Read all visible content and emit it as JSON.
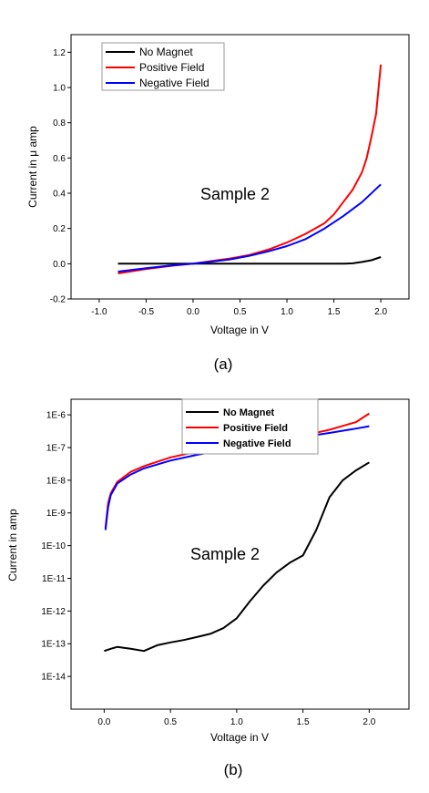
{
  "chart_data": [
    {
      "type": "line",
      "caption": "(a)",
      "xlabel": "Voltage in V",
      "ylabel": "Current in  μ amp",
      "annotation": "Sample 2",
      "xlim": [
        -1.3,
        2.3
      ],
      "ylim": [
        -0.2,
        1.3
      ],
      "xticks": [
        "-1.0",
        "-0.5",
        "0.0",
        "0.5",
        "1.0",
        "1.5",
        "2.0"
      ],
      "yticks": [
        "-0.2",
        "0.0",
        "0.2",
        "0.4",
        "0.6",
        "0.8",
        "1.0",
        "1.2"
      ],
      "legend_position": "top-left",
      "series": [
        {
          "name": "No Magnet",
          "color": "#000000",
          "x": [
            -0.8,
            0.0,
            0.5,
            1.0,
            1.5,
            1.6,
            1.7,
            1.8,
            1.9,
            2.0
          ],
          "y": [
            0.0,
            0.0,
            0.0,
            0.0,
            0.0,
            0.0,
            0.002,
            0.01,
            0.02,
            0.038
          ]
        },
        {
          "name": "Positive Field",
          "color": "#ff0000",
          "x": [
            -0.8,
            -0.5,
            -0.2,
            0.0,
            0.2,
            0.4,
            0.6,
            0.8,
            1.0,
            1.2,
            1.4,
            1.5,
            1.6,
            1.7,
            1.8,
            1.85,
            1.9,
            1.95,
            2.0
          ],
          "y": [
            -0.055,
            -0.03,
            -0.01,
            0.0,
            0.015,
            0.03,
            0.05,
            0.08,
            0.12,
            0.17,
            0.23,
            0.28,
            0.35,
            0.42,
            0.52,
            0.6,
            0.72,
            0.85,
            1.13
          ]
        },
        {
          "name": "Negative Field",
          "color": "#0000ff",
          "x": [
            -0.8,
            -0.5,
            -0.2,
            0.0,
            0.2,
            0.4,
            0.6,
            0.8,
            1.0,
            1.2,
            1.4,
            1.6,
            1.8,
            2.0
          ],
          "y": [
            -0.045,
            -0.025,
            -0.008,
            0.0,
            0.012,
            0.025,
            0.045,
            0.07,
            0.1,
            0.14,
            0.2,
            0.27,
            0.35,
            0.45
          ]
        }
      ]
    },
    {
      "type": "line",
      "caption": "(b)",
      "xlabel": "Voltage in V",
      "ylabel": "Current in amp",
      "annotation": "Sample 2",
      "xscale": "linear",
      "yscale": "log",
      "xlim": [
        -0.25,
        2.3
      ],
      "ylim": [
        1e-15,
        3e-06
      ],
      "xticks": [
        "0.0",
        "0.5",
        "1.0",
        "1.5",
        "2.0"
      ],
      "yticks": [
        "1E-6",
        "1E-7",
        "1E-8",
        "1E-9",
        "1E-10",
        "1E-11",
        "1E-12",
        "1E-13",
        "1E-14"
      ],
      "legend_position": "top",
      "series": [
        {
          "name": "No Magnet",
          "color": "#000000",
          "x": [
            0.0,
            0.05,
            0.1,
            0.2,
            0.3,
            0.4,
            0.5,
            0.6,
            0.7,
            0.8,
            0.9,
            1.0,
            1.1,
            1.2,
            1.3,
            1.4,
            1.5,
            1.6,
            1.7,
            1.8,
            1.9,
            2.0
          ],
          "y": [
            6e-14,
            7e-14,
            8e-14,
            7e-14,
            6e-14,
            9e-14,
            1.1e-13,
            1.3e-13,
            1.6e-13,
            2e-13,
            3e-13,
            6e-13,
            2e-12,
            6e-12,
            1.5e-11,
            3e-11,
            5e-11,
            3e-10,
            3e-09,
            1e-08,
            2e-08,
            3.5e-08
          ]
        },
        {
          "name": "Positive Field",
          "color": "#ff0000",
          "x": [
            0.01,
            0.03,
            0.05,
            0.1,
            0.2,
            0.3,
            0.5,
            0.7,
            1.0,
            1.3,
            1.5,
            1.7,
            1.9,
            2.0
          ],
          "y": [
            3.5e-10,
            2e-09,
            4e-09,
            9e-09,
            1.8e-08,
            2.7e-08,
            5e-08,
            7.5e-08,
            1.2e-07,
            1.8e-07,
            2.3e-07,
            3.5e-07,
            6e-07,
            1.1e-06
          ]
        },
        {
          "name": "Negative Field",
          "color": "#0000ff",
          "x": [
            0.01,
            0.03,
            0.05,
            0.1,
            0.2,
            0.3,
            0.5,
            0.7,
            1.0,
            1.3,
            1.5,
            1.7,
            1.9,
            2.0
          ],
          "y": [
            3e-10,
            1.5e-09,
            3.5e-09,
            8e-09,
            1.5e-08,
            2.3e-08,
            4e-08,
            6e-08,
            1e-07,
            1.5e-07,
            2.1e-07,
            2.8e-07,
            3.8e-07,
            4.5e-07
          ]
        }
      ]
    }
  ]
}
